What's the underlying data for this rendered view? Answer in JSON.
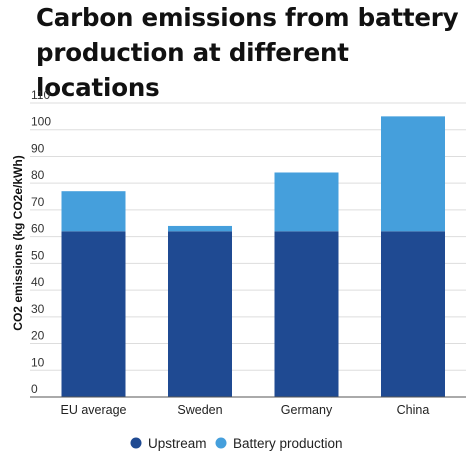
{
  "colors": {
    "upstream": "#1f4a92",
    "battery_production": "#459fdc",
    "grid": "#dddddd",
    "axis": "#555555"
  },
  "chart_data": {
    "type": "bar",
    "stacked": true,
    "title": "Carbon emissions from battery production at different locations",
    "xlabel": "",
    "ylabel": "CO2 emissions (kg CO2e/kWh)",
    "ylim": [
      0,
      110
    ],
    "yticks": [
      0,
      10,
      20,
      30,
      40,
      50,
      60,
      70,
      80,
      90,
      100,
      110
    ],
    "grid": true,
    "legend_position": "bottom",
    "categories": [
      "EU average",
      "Sweden",
      "Germany",
      "China"
    ],
    "series": [
      {
        "name": "Upstream",
        "color": "#1f4a92",
        "values": [
          62,
          62,
          62,
          62
        ]
      },
      {
        "name": "Battery production",
        "color": "#459fdc",
        "values": [
          15,
          2,
          22,
          43
        ]
      }
    ]
  }
}
